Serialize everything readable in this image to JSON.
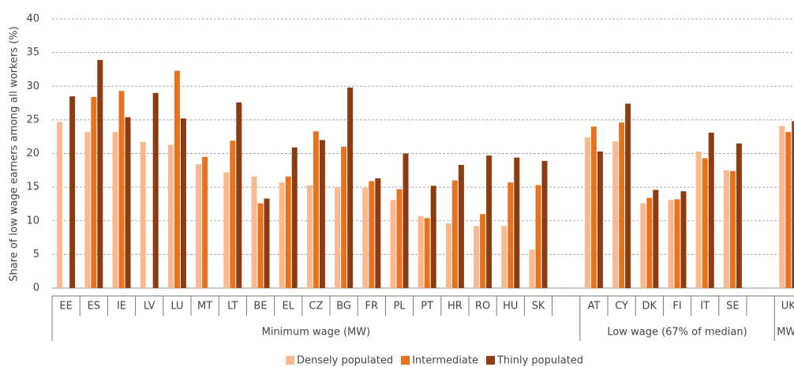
{
  "chart_data": {
    "type": "bar",
    "y_label": "Share of low wage earners among all workers (%)",
    "categories": [
      "EE",
      "ES",
      "IE",
      "LV",
      "LU",
      "MT",
      "LT",
      "BE",
      "EL",
      "CZ",
      "BG",
      "FR",
      "PL",
      "PT",
      "HR",
      "RO",
      "HU",
      "SK",
      null,
      "AT",
      "CY",
      "DK",
      "FI",
      "IT",
      "SE",
      null,
      "UK"
    ],
    "groups": [
      "Minimum wage (MW)",
      "Low wage (67% of median)",
      "MW"
    ],
    "series": [
      {
        "name": "Densely populated",
        "color": "#f9b98e",
        "values": [
          24.7,
          23.2,
          23.2,
          21.7,
          21.3,
          18.4,
          17.2,
          16.6,
          15.7,
          15.3,
          15.0,
          14.9,
          13.1,
          10.7,
          9.6,
          9.2,
          9.2,
          5.7,
          null,
          22.4,
          21.8,
          12.6,
          13.1,
          20.3,
          17.5,
          null,
          24.1
        ]
      },
      {
        "name": "Intermediate",
        "color": "#e8731f",
        "values": [
          null,
          28.4,
          29.3,
          null,
          32.3,
          19.5,
          21.9,
          12.6,
          16.6,
          23.3,
          21.0,
          15.9,
          14.7,
          10.4,
          16.0,
          11.0,
          15.7,
          15.3,
          null,
          24.0,
          24.6,
          13.4,
          13.2,
          19.3,
          17.4,
          null,
          23.2
        ]
      },
      {
        "name": "Thinly populated",
        "color": "#8c3c10",
        "values": [
          28.5,
          33.9,
          25.4,
          29.0,
          25.2,
          null,
          27.6,
          13.3,
          20.9,
          22.0,
          29.8,
          16.3,
          20.0,
          15.2,
          18.3,
          19.7,
          19.4,
          18.9,
          null,
          20.3,
          27.4,
          14.6,
          14.4,
          23.1,
          21.5,
          null,
          24.8
        ]
      }
    ],
    "ylim": [
      0,
      40
    ],
    "yticks": [
      0,
      5,
      10,
      15,
      20,
      25,
      30,
      35,
      40
    ],
    "grid": true
  }
}
